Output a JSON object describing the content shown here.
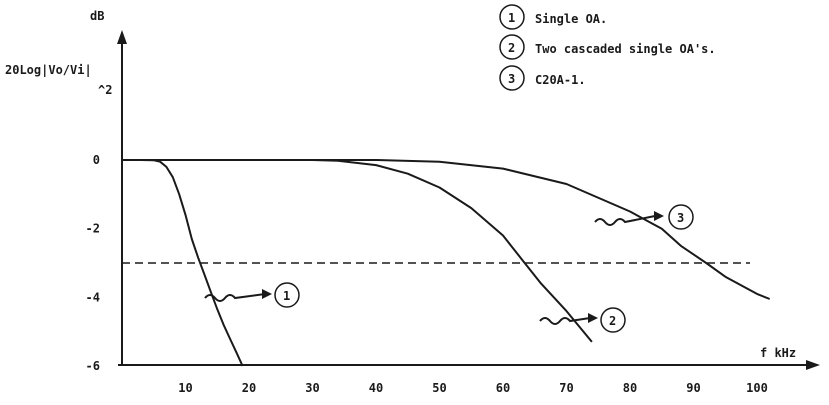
{
  "chart_data": {
    "type": "line",
    "ylabel_unit": "dB",
    "ylabel_expr": "20Log|Vo/Vi|",
    "ylabel_under": "^2",
    "xlabel": "f kHz",
    "xlim": [
      0,
      110
    ],
    "ylim": [
      -6.5,
      1.5
    ],
    "x_ticks": [
      10,
      20,
      30,
      40,
      50,
      60,
      70,
      80,
      90,
      100
    ],
    "y_ticks": [
      0,
      -2,
      -4,
      -6
    ],
    "reference_line": -3,
    "legend": [
      {
        "num": "1",
        "label": "Single OA."
      },
      {
        "num": "2",
        "label": "Two cascaded single OA's."
      },
      {
        "num": "3",
        "label": "C20A-1."
      }
    ],
    "series": [
      {
        "id": "1",
        "points": [
          [
            0,
            0
          ],
          [
            3,
            0
          ],
          [
            5,
            -0.01
          ],
          [
            6,
            -0.05
          ],
          [
            7,
            -0.2
          ],
          [
            8,
            -0.5
          ],
          [
            9,
            -1.0
          ],
          [
            10,
            -1.6
          ],
          [
            11,
            -2.3
          ],
          [
            12,
            -2.85
          ],
          [
            13,
            -3.35
          ],
          [
            14,
            -3.85
          ],
          [
            15,
            -4.35
          ],
          [
            16,
            -4.8
          ],
          [
            17,
            -5.2
          ],
          [
            18,
            -5.6
          ],
          [
            19,
            -6.0
          ]
        ]
      },
      {
        "id": "2",
        "points": [
          [
            0,
            0
          ],
          [
            30,
            0
          ],
          [
            34,
            -0.02
          ],
          [
            40,
            -0.15
          ],
          [
            45,
            -0.4
          ],
          [
            50,
            -0.8
          ],
          [
            55,
            -1.4
          ],
          [
            60,
            -2.2
          ],
          [
            63,
            -2.9
          ],
          [
            66,
            -3.6
          ],
          [
            70,
            -4.4
          ],
          [
            74,
            -5.3
          ]
        ]
      },
      {
        "id": "3",
        "points": [
          [
            0,
            0
          ],
          [
            40,
            0
          ],
          [
            50,
            -0.05
          ],
          [
            60,
            -0.25
          ],
          [
            70,
            -0.7
          ],
          [
            80,
            -1.5
          ],
          [
            85,
            -2.0
          ],
          [
            88,
            -2.5
          ],
          [
            92,
            -3.0
          ],
          [
            95,
            -3.4
          ],
          [
            100,
            -3.9
          ],
          [
            102,
            -4.05
          ]
        ]
      }
    ]
  }
}
